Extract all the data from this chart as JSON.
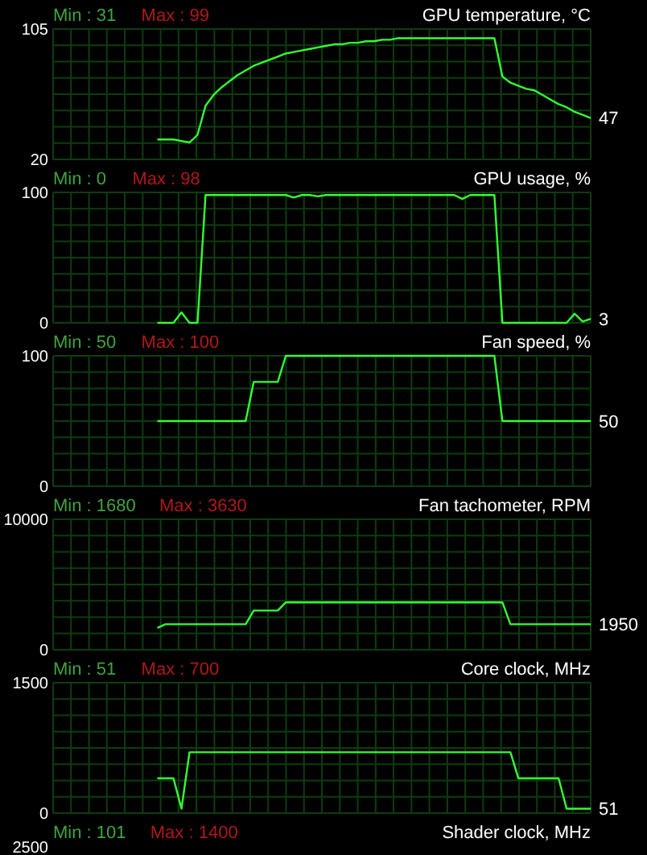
{
  "chart_data": [
    {
      "type": "line",
      "title": "GPU temperature, °C",
      "categories": [
        null,
        null,
        null,
        null,
        null,
        null,
        null,
        null,
        null,
        null,
        null,
        null,
        null,
        null,
        null,
        null,
        null,
        null,
        null,
        null,
        null,
        null,
        null,
        null,
        null,
        null,
        null,
        null,
        null,
        null,
        null,
        null,
        null,
        null,
        null,
        null,
        null,
        null,
        null,
        null,
        null,
        null,
        null,
        null,
        null,
        null,
        null,
        null,
        null,
        null,
        null,
        null,
        null,
        null,
        null,
        null,
        null,
        null,
        null,
        null,
        null,
        null,
        null,
        null,
        null,
        null,
        null,
        null
      ],
      "values": [
        null,
        null,
        null,
        null,
        null,
        null,
        null,
        null,
        null,
        null,
        null,
        null,
        null,
        33,
        33,
        33,
        32,
        31,
        36,
        55,
        62,
        67,
        71,
        75,
        78,
        81,
        83,
        85,
        87,
        89,
        90,
        91,
        92,
        93,
        94,
        95,
        95,
        96,
        96,
        97,
        97,
        98,
        98,
        99,
        99,
        99,
        99,
        99,
        99,
        99,
        99,
        99,
        99,
        99,
        99,
        99,
        74,
        70,
        68,
        66,
        65,
        62,
        59,
        56,
        54,
        51,
        49,
        47
      ],
      "color": "#33ff33",
      "ylim": [
        20,
        105
      ],
      "yticks": [
        20,
        105
      ],
      "grid": true,
      "annotations": [
        "Min : 31",
        "Max : 99",
        "47"
      ]
    },
    {
      "type": "line",
      "title": "GPU usage, %",
      "categories": [
        null,
        null,
        null,
        null,
        null,
        null,
        null,
        null,
        null,
        null,
        null,
        null,
        null,
        null,
        null,
        null,
        null,
        null,
        null,
        null,
        null,
        null,
        null,
        null,
        null,
        null,
        null,
        null,
        null,
        null,
        null,
        null,
        null,
        null,
        null,
        null,
        null,
        null,
        null,
        null,
        null,
        null,
        null,
        null,
        null,
        null,
        null,
        null,
        null,
        null,
        null,
        null,
        null,
        null,
        null,
        null,
        null,
        null,
        null,
        null,
        null,
        null,
        null,
        null,
        null,
        null,
        null,
        null
      ],
      "values": [
        null,
        null,
        null,
        null,
        null,
        null,
        null,
        null,
        null,
        null,
        null,
        null,
        null,
        0,
        0,
        0,
        8,
        0,
        0,
        98,
        98,
        98,
        98,
        98,
        98,
        98,
        98,
        98,
        98,
        98,
        96,
        98,
        98,
        97,
        98,
        98,
        98,
        98,
        98,
        98,
        98,
        98,
        98,
        98,
        98,
        98,
        98,
        98,
        98,
        98,
        98,
        95,
        98,
        98,
        98,
        98,
        0,
        0,
        0,
        0,
        0,
        0,
        0,
        0,
        0,
        7,
        1,
        3
      ],
      "color": "#33ff33",
      "ylim": [
        0,
        100
      ],
      "yticks": [
        0,
        100
      ],
      "grid": true,
      "annotations": [
        "Min : 0",
        "Max : 98",
        "3"
      ]
    },
    {
      "type": "line",
      "title": "Fan speed, %",
      "categories": [
        null,
        null,
        null,
        null,
        null,
        null,
        null,
        null,
        null,
        null,
        null,
        null,
        null,
        null,
        null,
        null,
        null,
        null,
        null,
        null,
        null,
        null,
        null,
        null,
        null,
        null,
        null,
        null,
        null,
        null,
        null,
        null,
        null,
        null,
        null,
        null,
        null,
        null,
        null,
        null,
        null,
        null,
        null,
        null,
        null,
        null,
        null,
        null,
        null,
        null,
        null,
        null,
        null,
        null,
        null,
        null,
        null,
        null,
        null,
        null,
        null,
        null,
        null,
        null,
        null,
        null,
        null,
        null
      ],
      "values": [
        null,
        null,
        null,
        null,
        null,
        null,
        null,
        null,
        null,
        null,
        null,
        null,
        null,
        50,
        50,
        50,
        50,
        50,
        50,
        50,
        50,
        50,
        50,
        50,
        50,
        80,
        80,
        80,
        80,
        100,
        100,
        100,
        100,
        100,
        100,
        100,
        100,
        100,
        100,
        100,
        100,
        100,
        100,
        100,
        100,
        100,
        100,
        100,
        100,
        100,
        100,
        100,
        100,
        100,
        100,
        100,
        50,
        50,
        50,
        50,
        50,
        50,
        50,
        50,
        50,
        50,
        50,
        50
      ],
      "color": "#33ff33",
      "ylim": [
        0,
        100
      ],
      "yticks": [
        0,
        100
      ],
      "grid": true,
      "annotations": [
        "Min : 50",
        "Max : 100",
        "50"
      ]
    },
    {
      "type": "line",
      "title": "Fan tachometer, RPM",
      "categories": [
        null,
        null,
        null,
        null,
        null,
        null,
        null,
        null,
        null,
        null,
        null,
        null,
        null,
        null,
        null,
        null,
        null,
        null,
        null,
        null,
        null,
        null,
        null,
        null,
        null,
        null,
        null,
        null,
        null,
        null,
        null,
        null,
        null,
        null,
        null,
        null,
        null,
        null,
        null,
        null,
        null,
        null,
        null,
        null,
        null,
        null,
        null,
        null,
        null,
        null,
        null,
        null,
        null,
        null,
        null,
        null,
        null,
        null,
        null,
        null,
        null,
        null,
        null,
        null,
        null,
        null,
        null,
        null
      ],
      "values": [
        null,
        null,
        null,
        null,
        null,
        null,
        null,
        null,
        null,
        null,
        null,
        null,
        null,
        1680,
        1950,
        1950,
        1950,
        1950,
        1950,
        1950,
        1950,
        1950,
        1950,
        1950,
        1950,
        3000,
        3000,
        3000,
        3000,
        3630,
        3630,
        3630,
        3630,
        3630,
        3630,
        3630,
        3630,
        3630,
        3630,
        3630,
        3630,
        3630,
        3630,
        3630,
        3630,
        3630,
        3630,
        3630,
        3630,
        3630,
        3630,
        3630,
        3630,
        3630,
        3630,
        3630,
        3630,
        1950,
        1950,
        1950,
        1950,
        1950,
        1950,
        1950,
        1950,
        1950,
        1950,
        1950
      ],
      "color": "#33ff33",
      "ylim": [
        0,
        10000
      ],
      "yticks": [
        0,
        10000
      ],
      "grid": true,
      "annotations": [
        "Min : 1680",
        "Max : 3630",
        "1950"
      ]
    },
    {
      "type": "line",
      "title": "Core clock, MHz",
      "categories": [
        null,
        null,
        null,
        null,
        null,
        null,
        null,
        null,
        null,
        null,
        null,
        null,
        null,
        null,
        null,
        null,
        null,
        null,
        null,
        null,
        null,
        null,
        null,
        null,
        null,
        null,
        null,
        null,
        null,
        null,
        null,
        null,
        null,
        null,
        null,
        null,
        null,
        null,
        null,
        null,
        null,
        null,
        null,
        null,
        null,
        null,
        null,
        null,
        null,
        null,
        null,
        null,
        null,
        null,
        null,
        null,
        null,
        null,
        null,
        null,
        null,
        null,
        null,
        null,
        null,
        null,
        null,
        null
      ],
      "values": [
        null,
        null,
        null,
        null,
        null,
        null,
        null,
        null,
        null,
        null,
        null,
        null,
        null,
        400,
        400,
        400,
        51,
        700,
        700,
        700,
        700,
        700,
        700,
        700,
        700,
        700,
        700,
        700,
        700,
        700,
        700,
        700,
        700,
        700,
        700,
        700,
        700,
        700,
        700,
        700,
        700,
        700,
        700,
        700,
        700,
        700,
        700,
        700,
        700,
        700,
        700,
        700,
        700,
        700,
        700,
        700,
        700,
        700,
        400,
        400,
        400,
        400,
        400,
        400,
        51,
        51,
        51,
        51
      ],
      "color": "#33ff33",
      "ylim": [
        0,
        1500
      ],
      "yticks": [
        0,
        1500
      ],
      "grid": true,
      "annotations": [
        "Min : 51",
        "Max : 700",
        "51"
      ]
    },
    {
      "type": "other",
      "title": "Shader clock, MHz",
      "annotations": [
        "Min : 101",
        "Max : 1400",
        "2500"
      ]
    }
  ]
}
